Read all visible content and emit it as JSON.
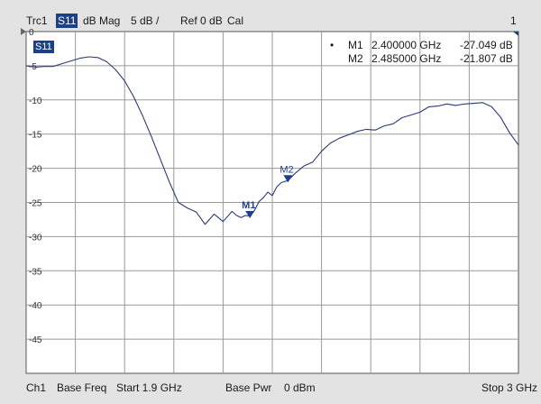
{
  "header": {
    "trace_id": "Trc1",
    "parameter": "S11",
    "format": "dB Mag",
    "scale": "5 dB /",
    "reference": "Ref 0 dB",
    "cal": "Cal",
    "channel_number": "1"
  },
  "trace_badge": "S11",
  "markers": [
    {
      "active_dot": "•",
      "name": "M1",
      "frequency": "2.400000 GHz",
      "value": "-27.049 dB"
    },
    {
      "active_dot": "",
      "name": "M2",
      "frequency": "2.485000 GHz",
      "value": "-21.807 dB"
    }
  ],
  "footer": {
    "channel": "Ch1",
    "base_freq": "Base Freq",
    "start": "Start  1.9 GHz",
    "base_pwr": "Base Pwr",
    "power": "0 dBm",
    "stop": "Stop  3 GHz"
  },
  "colors": {
    "trace": "#2a3a78",
    "grid": "#9a9a9a",
    "marker": "#1c3f8a",
    "plot_background": "#ffffff",
    "screen_background": "#e3e3e3"
  },
  "chart_data": {
    "type": "line",
    "title": "",
    "xlabel": "",
    "ylabel": "",
    "xlim": [
      1.9,
      3.0
    ],
    "ylim": [
      -50,
      0
    ],
    "x_unit": "GHz",
    "y_unit": "dB",
    "y_ticks": [
      "0",
      "-5",
      "-10",
      "-15",
      "-20",
      "-25",
      "-30",
      "-35",
      "-40",
      "-45"
    ],
    "x_divisions": 10,
    "grid": true,
    "series": [
      {
        "x": [
          1.9,
          1.92,
          1.94,
          1.96,
          1.98,
          2.0,
          2.02,
          2.04,
          2.06,
          2.08,
          2.1,
          2.12,
          2.14,
          2.16,
          2.18,
          2.2,
          2.22,
          2.24,
          2.26,
          2.28,
          2.3,
          2.32,
          2.34,
          2.36,
          2.37,
          2.38,
          2.39,
          2.4,
          2.41,
          2.42,
          2.43,
          2.44,
          2.45,
          2.46,
          2.47,
          2.485,
          2.5,
          2.52,
          2.54,
          2.56,
          2.58,
          2.6,
          2.62,
          2.64,
          2.66,
          2.68,
          2.7,
          2.72,
          2.74,
          2.76,
          2.78,
          2.8,
          2.82,
          2.84,
          2.86,
          2.88,
          2.9,
          2.92,
          2.94,
          2.96,
          2.98,
          3.0
        ],
        "y": [
          -5.0,
          -5.2,
          -5.1,
          -5.1,
          -4.7,
          -4.3,
          -3.9,
          -3.7,
          -3.8,
          -4.4,
          -5.6,
          -7.2,
          -9.5,
          -12.3,
          -15.4,
          -18.7,
          -22.0,
          -25.0,
          -25.8,
          -26.4,
          -28.2,
          -26.7,
          -27.8,
          -26.3,
          -26.9,
          -27.2,
          -26.9,
          -27.0,
          -26.2,
          -24.9,
          -24.3,
          -23.5,
          -24.0,
          -22.7,
          -22.1,
          -21.8,
          -20.8,
          -19.7,
          -19.1,
          -17.5,
          -16.3,
          -15.6,
          -15.1,
          -14.6,
          -14.3,
          -14.4,
          -13.8,
          -13.5,
          -12.6,
          -12.2,
          -11.8,
          -11.0,
          -10.9,
          -10.6,
          -10.8,
          -10.6,
          -10.5,
          -10.4,
          -11.0,
          -12.5,
          -14.8,
          -16.6
        ]
      }
    ],
    "markers": [
      {
        "name": "M1",
        "x": 2.4,
        "y": -27.049
      },
      {
        "name": "M2",
        "x": 2.485,
        "y": -21.807
      }
    ]
  }
}
